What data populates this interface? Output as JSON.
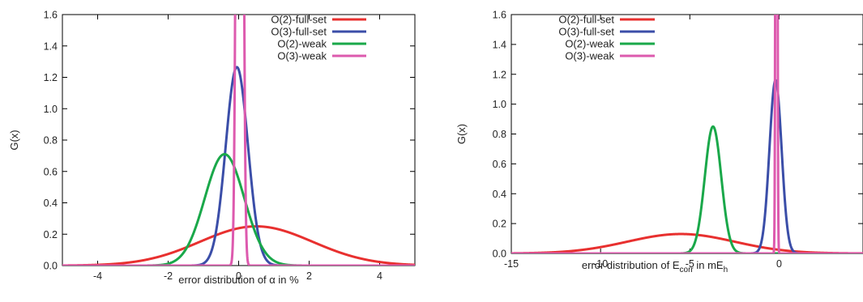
{
  "chart_data": [
    {
      "type": "line",
      "ylabel": "G(x)",
      "xlabel_parts": [
        "error distribution of ",
        "α",
        " in %"
      ],
      "xlim": [
        -5,
        5
      ],
      "ylim": [
        0,
        1.6
      ],
      "x_ticks": [
        -4,
        -2,
        0,
        2,
        4
      ],
      "x_tick_labels": [
        "-4",
        "-2",
        "0",
        "2",
        "4"
      ],
      "y_ticks": [
        0,
        0.2,
        0.4,
        0.6,
        0.8,
        1.0,
        1.2,
        1.4,
        1.6
      ],
      "y_tick_labels": [
        "0.0",
        "0.2",
        "0.4",
        "0.6",
        "0.8",
        "1.0",
        "1.2",
        "1.4",
        "1.6"
      ],
      "legend_position": "top-right",
      "series": [
        {
          "name": "O(2)-full-set",
          "color": "#e8302f",
          "mean": 0.5,
          "sd": 1.6,
          "peak": 0.25
        },
        {
          "name": "O(3)-full-set",
          "color": "#3b4ea8",
          "mean": -0.05,
          "sd": 0.315,
          "peak": 1.265
        },
        {
          "name": "O(2)-weak",
          "color": "#1aa84a",
          "mean": -0.4,
          "sd": 0.56,
          "peak": 0.71
        },
        {
          "name": "O(3)-weak",
          "color": "#dd5aae",
          "mean": 0.0,
          "sd": 0.06,
          "peak": 6.6,
          "mean2": 0.06
        }
      ]
    },
    {
      "type": "line",
      "ylabel": "G(x)",
      "xlabel_parts": [
        "error distribution of E",
        "corr",
        " in mE",
        "h"
      ],
      "xlim": [
        -15,
        4.7
      ],
      "ylim": [
        0,
        1.6
      ],
      "x_ticks": [
        -15,
        -10,
        -5,
        0
      ],
      "x_tick_labels": [
        "-15",
        "-10",
        "-5",
        "0"
      ],
      "y_ticks": [
        0,
        0.2,
        0.4,
        0.6,
        0.8,
        1.0,
        1.2,
        1.4,
        1.6
      ],
      "y_tick_labels": [
        "0.0",
        "0.2",
        "0.4",
        "0.6",
        "0.8",
        "1.0",
        "1.2",
        "1.4",
        "1.6"
      ],
      "legend_position": "top-left",
      "series": [
        {
          "name": "O(2)-full-set",
          "color": "#e8302f",
          "mean": -5.5,
          "sd": 3.0,
          "peak": 0.13
        },
        {
          "name": "O(3)-full-set",
          "color": "#3b4ea8",
          "mean": -0.2,
          "sd": 0.34,
          "peak": 1.16
        },
        {
          "name": "O(2)-weak",
          "color": "#1aa84a",
          "mean": -3.7,
          "sd": 0.46,
          "peak": 0.85
        },
        {
          "name": "O(3)-weak",
          "color": "#dd5aae",
          "mean": -0.15,
          "sd": 0.04,
          "peak": 9.0
        }
      ]
    }
  ]
}
